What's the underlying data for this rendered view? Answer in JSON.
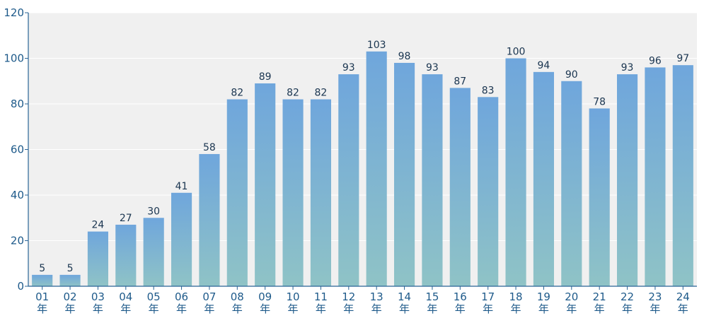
{
  "chart_data": {
    "type": "bar",
    "categories": [
      "01年",
      "02年",
      "03年",
      "04年",
      "05年",
      "06年",
      "07年",
      "08年",
      "09年",
      "10年",
      "11年",
      "12年",
      "13年",
      "14年",
      "15年",
      "16年",
      "17年",
      "18年",
      "19年",
      "20年",
      "21年",
      "22年",
      "23年",
      "24年"
    ],
    "values": [
      5,
      5,
      24,
      27,
      30,
      41,
      58,
      82,
      89,
      82,
      82,
      93,
      103,
      98,
      93,
      87,
      83,
      100,
      94,
      90,
      78,
      93,
      96,
      97
    ],
    "ylim": [
      0,
      120
    ],
    "yticks": [
      0,
      20,
      40,
      60,
      80,
      100,
      120
    ],
    "grid": true,
    "colors": {
      "bar_top": "#6fa6dc",
      "bar_bottom": "#8fc3c6",
      "plot_bg": "#f0f0f0",
      "axis": "#2a6496",
      "gridline": "#ffffff"
    }
  }
}
